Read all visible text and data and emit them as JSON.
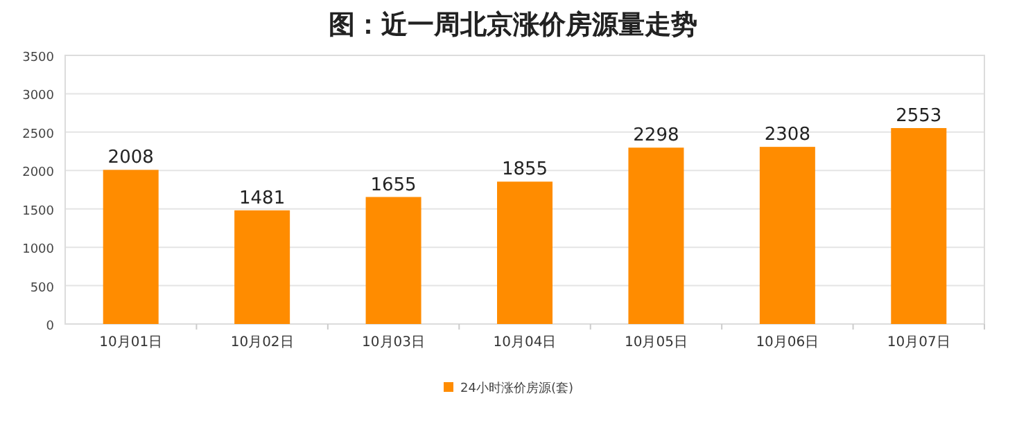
{
  "chart_data": {
    "type": "bar",
    "title": "图：近一周北京涨价房源量走势",
    "categories": [
      "10月01日",
      "10月02日",
      "10月03日",
      "10月04日",
      "10月05日",
      "10月06日",
      "10月07日"
    ],
    "series": [
      {
        "name": "24小时涨价房源(套)",
        "color": "#ff8c00",
        "values": [
          2008,
          1481,
          1655,
          1855,
          2298,
          2308,
          2553
        ]
      }
    ],
    "ylim": [
      0,
      3500
    ],
    "yticks": [
      0,
      500,
      1000,
      1500,
      2000,
      2500,
      3000,
      3500
    ],
    "grid": "y",
    "legend": "bottom",
    "data_labels": true
  }
}
